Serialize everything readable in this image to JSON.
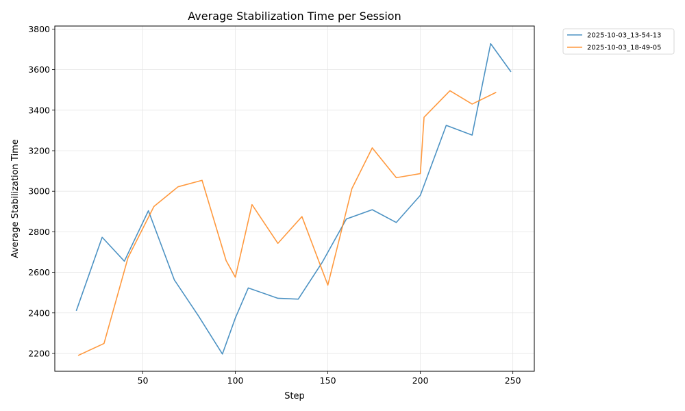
{
  "chart_data": {
    "type": "line",
    "title": "Average Stabilization Time per Session",
    "xlabel": "Step",
    "ylabel": "Average Stabilization Time",
    "xlim": [
      2.4,
      261.6
    ],
    "ylim": [
      2112,
      3815
    ],
    "xticks": [
      50,
      100,
      150,
      200,
      250
    ],
    "yticks": [
      2200,
      2400,
      2600,
      2800,
      3000,
      3200,
      3400,
      3600,
      3800
    ],
    "grid": true,
    "legend_position": "outside-top-right",
    "series": [
      {
        "name": "2025-10-03_13-54-13",
        "color": "#1f77b4",
        "x": [
          14,
          28,
          40,
          53,
          67,
          80,
          93,
          100,
          107,
          123,
          134,
          147,
          160,
          174,
          187,
          200,
          214,
          228,
          238,
          249
        ],
        "y": [
          2410,
          2773,
          2655,
          2904,
          2563,
          2386,
          2197,
          2375,
          2523,
          2472,
          2468,
          2650,
          2863,
          2909,
          2846,
          2980,
          3325,
          3277,
          3728,
          3589
        ]
      },
      {
        "name": "2025-10-03_18-49-05",
        "color": "#ff7f0e",
        "x": [
          15,
          29,
          42,
          56,
          69,
          82,
          95,
          100,
          109,
          123,
          136,
          150,
          163,
          174,
          187,
          200,
          202,
          216,
          228,
          241
        ],
        "y": [
          2190,
          2249,
          2673,
          2925,
          3022,
          3054,
          2658,
          2576,
          2934,
          2743,
          2875,
          2537,
          3013,
          3214,
          3067,
          3087,
          3365,
          3496,
          3430,
          3488
        ]
      }
    ]
  }
}
